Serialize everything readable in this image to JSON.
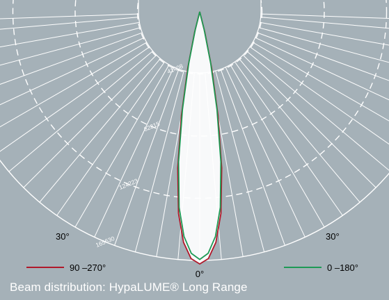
{
  "colors": {
    "background": "#a5b1b8",
    "grid": "#ffffff",
    "series_90_270": "#b0182a",
    "series_0_180": "#1e9a55",
    "beam_fill": "#ffffff"
  },
  "caption": "Beam distribution: HypaLUME® Long Range",
  "chart_data": {
    "type": "polar",
    "title": "",
    "unit": "",
    "radial_ticks": [
      41408,
      82815,
      124223,
      165630
    ],
    "radial_tick_labels": [
      "41408",
      "82815",
      "124223",
      "165630"
    ],
    "r_max": 165630,
    "angle_labels": {
      "left": "30°",
      "right": "30°",
      "bottom": "0°"
    },
    "angle_grid_step_deg": 5,
    "angle_range_deg": [
      -85,
      85
    ],
    "legend_placement": "bottom",
    "series": [
      {
        "name": "90 –270°",
        "color": "#b0182a",
        "points": [
          [
            0,
            168000
          ],
          [
            2,
            164500
          ],
          [
            4,
            154000
          ],
          [
            6,
            135000
          ],
          [
            8,
            105000
          ],
          [
            10,
            70000
          ],
          [
            12,
            38000
          ],
          [
            14,
            14000
          ],
          [
            15,
            0
          ]
        ]
      },
      {
        "name": "0 –180°",
        "color": "#1e9a55",
        "points": [
          [
            0,
            165000
          ],
          [
            2,
            161000
          ],
          [
            4,
            150000
          ],
          [
            6,
            131000
          ],
          [
            8,
            101000
          ],
          [
            10,
            66000
          ],
          [
            12,
            35000
          ],
          [
            14,
            12000
          ],
          [
            15,
            0
          ]
        ]
      }
    ]
  }
}
